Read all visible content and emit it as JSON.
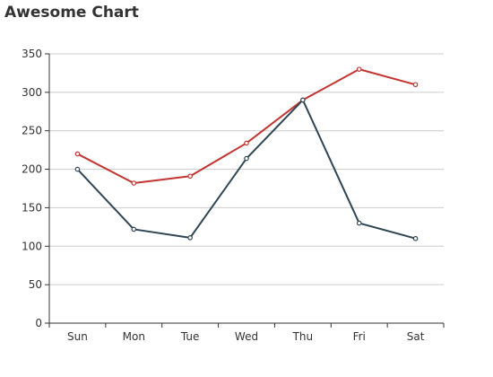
{
  "chart_data": {
    "type": "line",
    "title": "Awesome Chart",
    "categories": [
      "Sun",
      "Mon",
      "Tue",
      "Wed",
      "Thu",
      "Fri",
      "Sat"
    ],
    "ylim": [
      0,
      350
    ],
    "yticks": [
      0,
      50,
      100,
      150,
      200,
      250,
      300,
      350
    ],
    "grid": true,
    "series": [
      {
        "color": "#c23531",
        "values": [
          220,
          182,
          191,
          234,
          290,
          330,
          310
        ]
      },
      {
        "color": "#2f4554",
        "values": [
          200,
          122,
          111,
          214,
          290,
          130,
          110
        ]
      }
    ]
  }
}
